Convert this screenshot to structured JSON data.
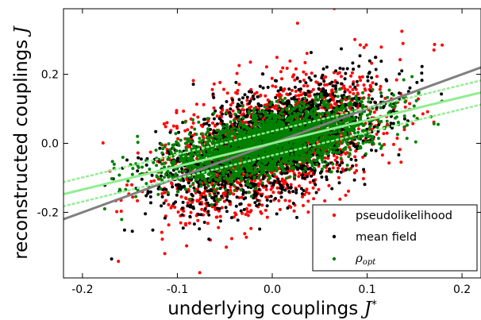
{
  "chart_data": {
    "type": "scatter",
    "xlabel": "underlying couplings ",
    "xlabel_symbol": "J",
    "xlabel_sup": "*",
    "ylabel": "reconstructed couplings ",
    "ylabel_symbol": "J",
    "xlim": [
      -0.22,
      0.22
    ],
    "ylim": [
      -0.39,
      0.39
    ],
    "x_ticks": [
      -0.2,
      -0.1,
      0.0,
      0.1,
      0.2
    ],
    "x_tick_labels": [
      "-0.2",
      "-0.1",
      "0.0",
      "0.1",
      "0.2"
    ],
    "y_ticks": [
      -0.2,
      0.0,
      0.2
    ],
    "y_tick_labels": [
      "-0.2",
      "0.0",
      "0.2"
    ],
    "grid": false,
    "legend_position": "bottom-right",
    "series": [
      {
        "name": "pseudolikelihood",
        "color": "#ff0000",
        "marker": "dot",
        "slope": 0.88,
        "spread": 0.085,
        "count": 1900,
        "x_sd": 0.055
      },
      {
        "name": "mean field",
        "color": "#000000",
        "marker": "dot",
        "slope": 0.88,
        "spread": 0.072,
        "count": 1900,
        "x_sd": 0.055
      },
      {
        "name": "",
        "legend_symbol": "ρ",
        "legend_subscript": "opt",
        "color": "#008000",
        "marker": "dot",
        "slope": 0.6,
        "spread": 0.045,
        "count": 2400,
        "x_sd": 0.055
      }
    ],
    "lines": [
      {
        "slope": 1.0,
        "intercept": 0.0,
        "color": "#808080",
        "style": "solid"
      },
      {
        "slope": 0.67,
        "intercept": 0.0,
        "color": "#90ee90",
        "style": "solid"
      },
      {
        "slope": 0.67,
        "intercept": 0.035,
        "color": "#90ee90",
        "style": "dotted"
      },
      {
        "slope": 0.67,
        "intercept": -0.035,
        "color": "#90ee90",
        "style": "dotted"
      }
    ]
  }
}
